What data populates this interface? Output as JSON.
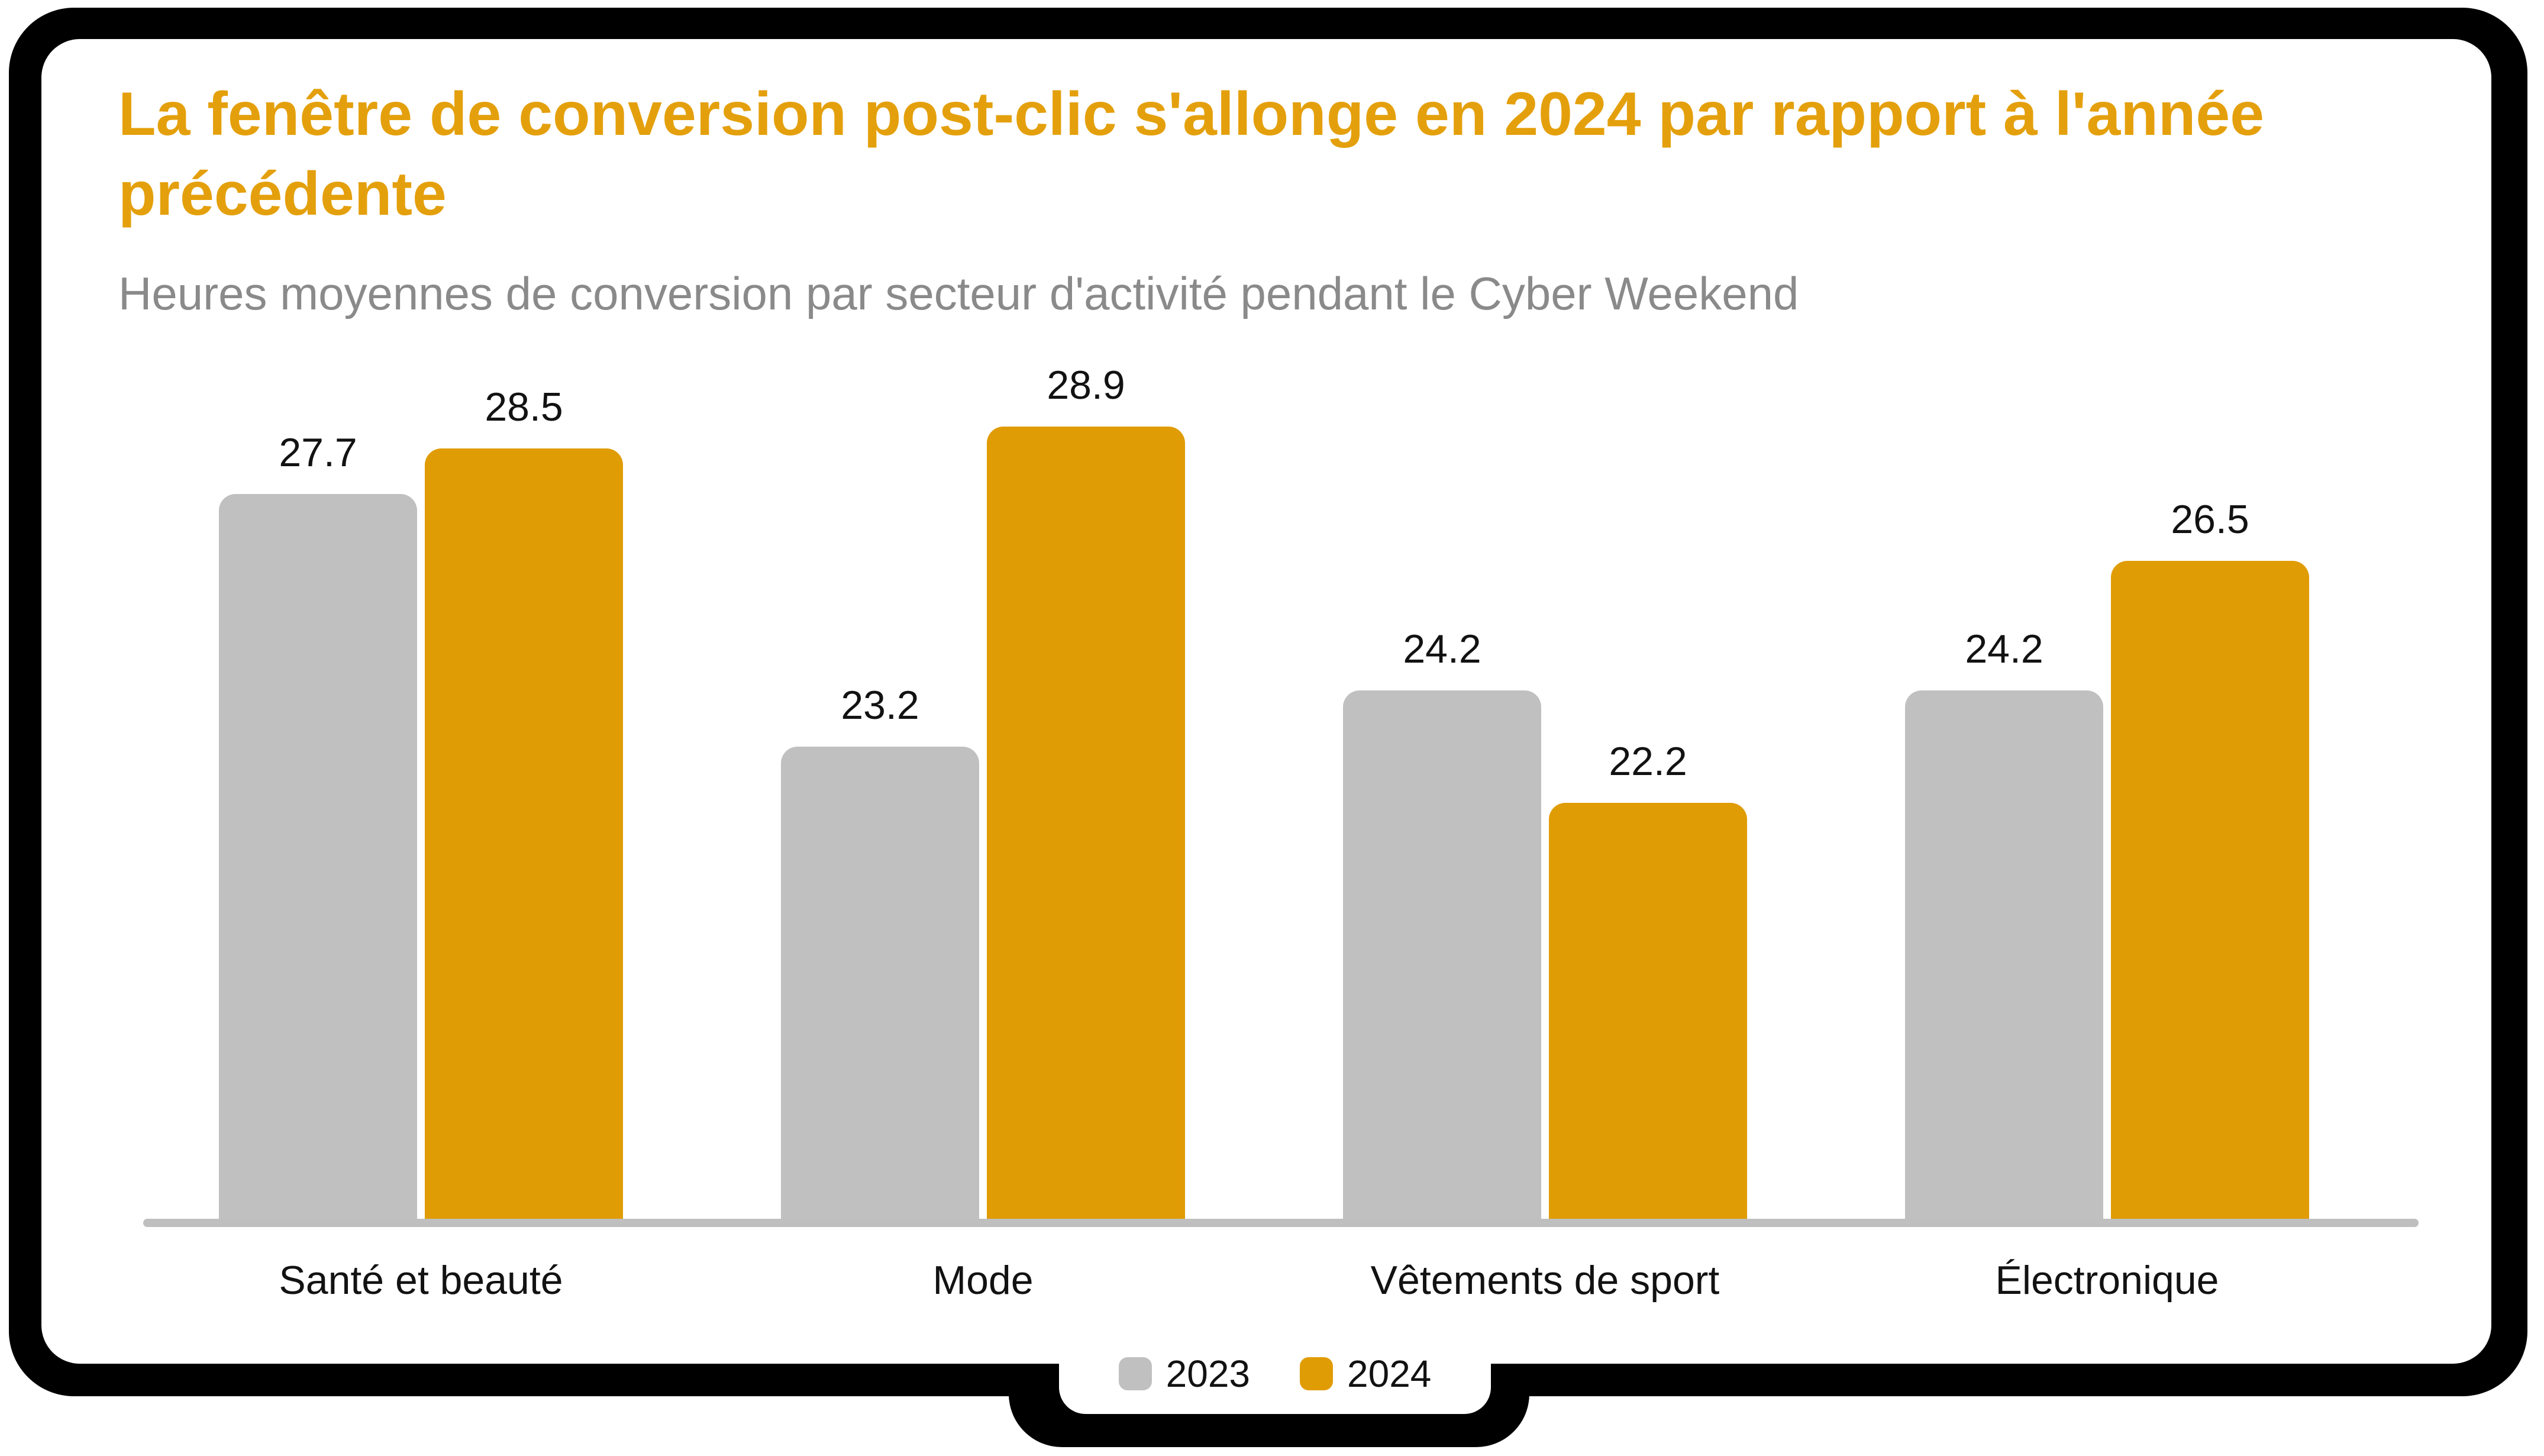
{
  "chart_data": {
    "type": "bar",
    "title": "La fenêtre de conversion post-clic s'allonge en 2024 par rapport à l'année précédente",
    "subtitle": "Heures moyennes de conversion par secteur d'activité pendant le Cyber Weekend",
    "categories": [
      "Santé et beauté",
      "Mode",
      "Vêtements de sport",
      "Électronique"
    ],
    "series": [
      {
        "name": "2023",
        "color": "#C0C0C0",
        "values": [
          27.7,
          23.2,
          24.2,
          24.2
        ]
      },
      {
        "name": "2024",
        "color": "#E09C04",
        "values": [
          28.5,
          28.9,
          22.2,
          26.5
        ]
      }
    ],
    "value_labels": [
      [
        "27.7",
        "28.5"
      ],
      [
        "23.2",
        "28.9"
      ],
      [
        "24.2",
        "22.2"
      ],
      [
        "24.2",
        "26.5"
      ]
    ],
    "xlabel": "",
    "ylabel": "",
    "ylim": [
      14.8,
      30
    ],
    "grid": false,
    "legend_position": "bottom"
  },
  "colors": {
    "title": "#E4A00C",
    "subtitle": "#8A8A8A",
    "axis_line": "#BFBFBF",
    "label": "#121212",
    "frame": "#000000",
    "card": "#FFFFFF"
  }
}
